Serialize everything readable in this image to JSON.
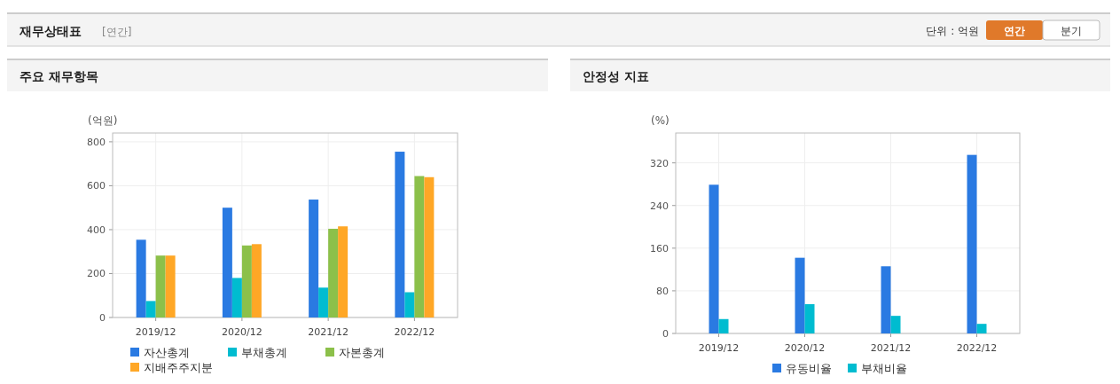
{
  "chart_data": [
    {
      "type": "bar",
      "title": "주요 재무항목",
      "ylabel": "(억원)",
      "annotations": [
        "재무상태표",
        "[연간]",
        "단위 : 억원",
        "연간",
        "분기"
      ],
      "categories": [
        "2019/12",
        "2020/12",
        "2021/12",
        "2022/12"
      ],
      "series": [
        {
          "name": "자산총계",
          "color": "#2a7ae2",
          "values": [
            354,
            500,
            537,
            755
          ]
        },
        {
          "name": "부채총계",
          "color": "#00bcd0",
          "values": [
            75,
            180,
            136,
            115
          ]
        },
        {
          "name": "자본총계",
          "color": "#8cc04a",
          "values": [
            282,
            328,
            404,
            644
          ]
        },
        {
          "name": "지배주주지분",
          "color": "#ffa726",
          "values": [
            282,
            334,
            415,
            639
          ]
        }
      ],
      "ylim": [
        0,
        840
      ],
      "yticks": [
        0,
        200,
        400,
        600,
        800
      ],
      "grid": true,
      "legend": "bottom"
    },
    {
      "type": "bar",
      "title": "안정성 지표",
      "ylabel": "(%)",
      "categories": [
        "2019/12",
        "2020/12",
        "2021/12",
        "2022/12"
      ],
      "series": [
        {
          "name": "유동비율",
          "color": "#2a7ae2",
          "values": [
            279,
            142,
            126,
            335
          ]
        },
        {
          "name": "부채비율",
          "color": "#00bcd0",
          "values": [
            27,
            55,
            33,
            18
          ]
        }
      ],
      "ylim": [
        0,
        376
      ],
      "yticks": [
        0,
        80,
        160,
        240,
        320
      ],
      "grid": true,
      "legend": "bottom"
    }
  ]
}
